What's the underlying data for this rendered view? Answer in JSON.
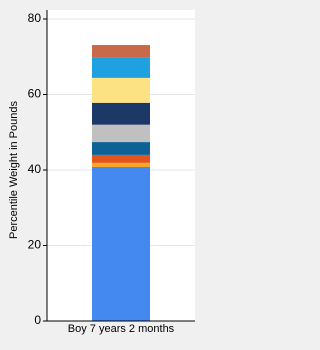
{
  "chart_data": {
    "type": "stacked_bar",
    "y_label": "Percentile Weight in Pounds",
    "categories": [
      "Boy 7 years 2 months"
    ],
    "series": [
      {
        "color": "#4389f0",
        "values": [
          40.8
        ]
      },
      {
        "color": "#f5a623",
        "values": [
          1.1
        ]
      },
      {
        "color": "#e2541b",
        "values": [
          2.1
        ]
      },
      {
        "color": "#0d6196",
        "values": [
          3.4
        ]
      },
      {
        "color": "#c0c0c0",
        "values": [
          4.6
        ]
      },
      {
        "color": "#1b3866",
        "values": [
          5.8
        ]
      },
      {
        "color": "#fde283",
        "values": [
          6.6
        ]
      },
      {
        "color": "#1fa0e0",
        "values": [
          5.3
        ]
      },
      {
        "color": "#c8694a",
        "values": [
          3.4
        ]
      }
    ],
    "ylim": [
      0,
      80
    ],
    "yticks": [
      0,
      20,
      40,
      60,
      80
    ],
    "grid": true
  }
}
